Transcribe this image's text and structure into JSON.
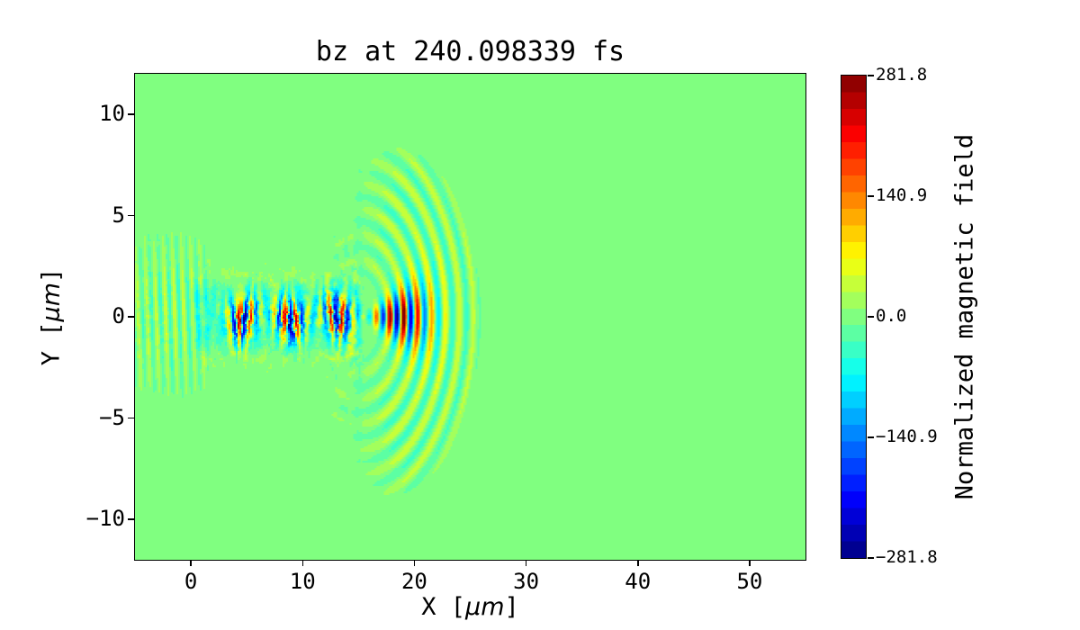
{
  "title": "bz at 240.098339 fs",
  "field_name": "bz",
  "time_fs": 240.098339,
  "axes": {
    "xlabel": {
      "prefix": "X [",
      "unit": "μm",
      "suffix": "]"
    },
    "ylabel": {
      "prefix": "Y [",
      "unit": "μm",
      "suffix": "]"
    }
  },
  "colors": {
    "figure_background": "#ffffff",
    "axis_color": "#000000",
    "zero_field_green": "#80ff80",
    "positive_strong": "#910000",
    "negative_strong": "#000091",
    "arc_positive_yellow": "#c6ff39",
    "channel_teal": "#39ffc6"
  },
  "chart_data": {
    "type": "heatmap",
    "title": "bz at 240.098339 fs",
    "xlabel": "X [μm]",
    "ylabel": "Y [μm]",
    "xlim": [
      -5,
      55
    ],
    "ylim": [
      -12,
      12
    ],
    "grid": false,
    "x_ticks": {
      "values": [
        0,
        10,
        20,
        30,
        40,
        50
      ],
      "labels": [
        "0",
        "10",
        "20",
        "30",
        "40",
        "50"
      ]
    },
    "y_ticks": {
      "values": [
        10,
        5,
        0,
        -5,
        -10
      ],
      "labels": [
        "10",
        "5",
        "0",
        "−5",
        "−10"
      ]
    },
    "colorbar": {
      "label": "Normalized magnetic field",
      "colormap": "jet",
      "discrete_levels": 29,
      "vmin": -281.8,
      "vmax": 281.8,
      "tick_values": [
        281.8,
        140.9,
        0.0,
        -140.9,
        -281.8
      ],
      "tick_labels": [
        "281.8",
        "140.9",
        "0.0",
        "−140.9",
        "−281.8"
      ]
    },
    "visible_structures": [
      "uniform green background = zero field over most of the domain (x from -5 to 55 um, y from -12 to 12 um)",
      "intense laser pulse filament along y=0 from x~1 to x~21 um with alternating positive (red, up to +281.8) and negative (blue) half-cycles, wavelength ~1 um",
      "teal/cyan plasma channel band |y|<~2.3 um for 0<x<15 um with yellow-green speckle noise and yellow blobs at the channel edges",
      "sharp vertical plasma boundary at x~15 um",
      "concentric circular wavefronts centered near (15,0) um, alternating yellow/teal arcs expanding to radius ~11.4 um, visible from y~-8.7 to y~+7.2",
      "strong red arc fronts of the pulse head between x~15 and x~21.5 um near y=0",
      "weak back-scattered vertical striping near the left edge, -5<x<1.5 um, mostly -2<y<5 um"
    ],
    "render_params": {
      "pulse_wavelength_um": 1.02,
      "arc_wavelength_um": 1.25,
      "arc_center_um": [
        15,
        0
      ],
      "arc_max_radius_um": 11.4,
      "channel_half_width_um": 2.3,
      "channel_x_extent_um": [
        0,
        15.3
      ],
      "pulse_peak_amplitude": 310,
      "arc_amplitude": 48,
      "head_amplitude": 290,
      "channel_teal_offset": -33,
      "backscatter_amplitude": 42,
      "noise_channel": 36,
      "noise_halo": 24,
      "grid_cells": [
        372,
        270
      ]
    }
  }
}
